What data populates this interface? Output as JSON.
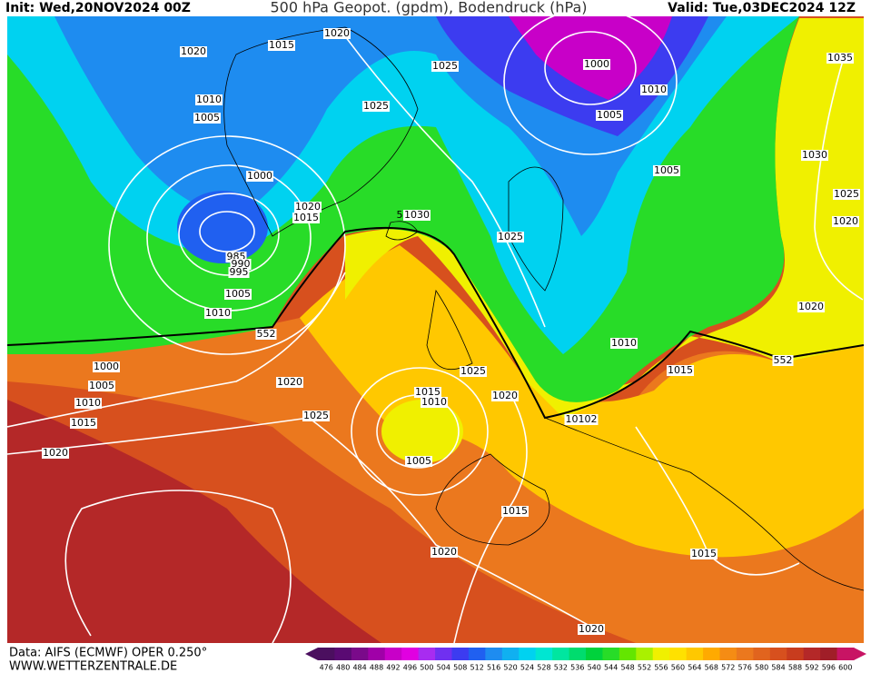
{
  "header": {
    "init": "Init: Wed,20NOV2024 00Z",
    "title": "500 hPa Geopot. (gpdm), Bodendruck (hPa)",
    "valid": "Valid: Tue,03DEC2024 12Z"
  },
  "footer": {
    "source": "Data: AIFS (ECMWF) OPER 0.250°",
    "website": "WWW.WETTERZENTRALE.DE"
  },
  "colorbar": {
    "values": [
      476,
      480,
      484,
      488,
      492,
      496,
      500,
      504,
      508,
      512,
      516,
      520,
      524,
      528,
      532,
      536,
      540,
      544,
      548,
      552,
      556,
      560,
      564,
      568,
      572,
      576,
      580,
      584,
      588,
      592,
      596,
      600
    ],
    "colors": [
      "#4b0f5f",
      "#5a0a73",
      "#7a0a8a",
      "#a000a8",
      "#c800c8",
      "#e100e1",
      "#a82cf0",
      "#7030f0",
      "#3c3cf0",
      "#2060f0",
      "#1e8cf0",
      "#10b0f0",
      "#00d2f0",
      "#00e6d2",
      "#00e6a0",
      "#00dc6e",
      "#00d23c",
      "#28dc28",
      "#64e600",
      "#aaf000",
      "#f0f000",
      "#ffe100",
      "#ffc800",
      "#ffaa00",
      "#f58c14",
      "#eb781e",
      "#e1641e",
      "#d7501e",
      "#c83c1e",
      "#b42828",
      "#a01e28",
      "#c81464"
    ]
  },
  "isobar_labels": [
    "1020",
    "1015",
    "1020",
    "1025",
    "1000",
    "1010",
    "1035",
    "1010",
    "1005",
    "1025",
    "1005",
    "1005",
    "1030",
    "1000",
    "1020",
    "1015",
    "1025",
    "1030",
    "1020",
    "1025",
    "985",
    "990",
    "995",
    "1005",
    "1010",
    "552",
    "1020",
    "1010",
    "552",
    "1000",
    "1005",
    "1020",
    "1025",
    "1015",
    "1015",
    "1010",
    "1020",
    "1010",
    "1015",
    "1025",
    "10102",
    "1020",
    "1005",
    "1015",
    "1020",
    "1015",
    "1020",
    "5"
  ]
}
